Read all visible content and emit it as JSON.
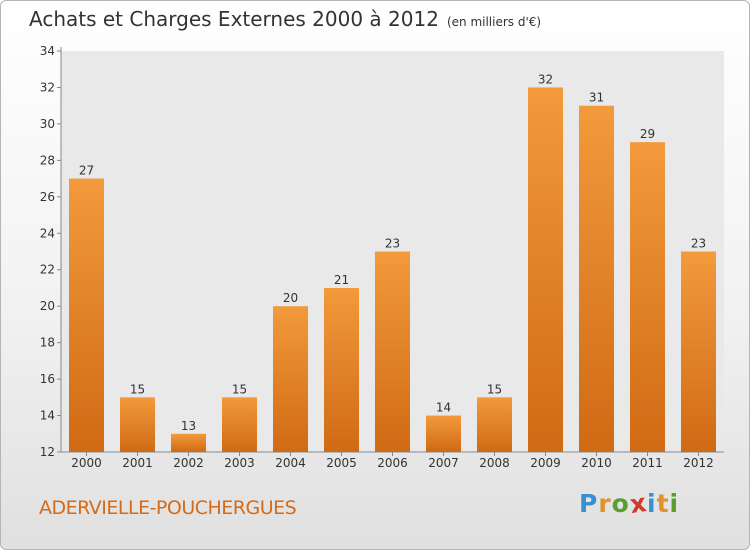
{
  "title": "Achats et Charges Externes 2000 à 2012",
  "subtitle": "(en milliers d'€)",
  "commune": "ADERVIELLE-POUCHERGUES",
  "logo": {
    "text": "Proxiti",
    "letters": [
      "P",
      "r",
      "o",
      "x",
      "i",
      "t",
      "i"
    ],
    "colors": [
      "#3a8fd0",
      "#e0932a",
      "#5a9e2f",
      "#d23a2a",
      "#3a8fd0",
      "#e0932a",
      "#5a9e2f"
    ]
  },
  "chart_data": {
    "type": "bar",
    "title": "Achats et Charges Externes 2000 à 2012",
    "subtitle": "(en milliers d'€)",
    "categories": [
      "2000",
      "2001",
      "2002",
      "2003",
      "2004",
      "2005",
      "2006",
      "2007",
      "2008",
      "2009",
      "2010",
      "2011",
      "2012"
    ],
    "values": [
      27,
      15,
      13,
      15,
      20,
      21,
      23,
      14,
      15,
      32,
      31,
      29,
      23
    ],
    "ylim": [
      12,
      34
    ],
    "yticks": [
      12,
      14,
      16,
      18,
      20,
      22,
      24,
      26,
      28,
      30,
      32,
      34
    ],
    "grid": false,
    "bar_color": "#f29a3c",
    "bar_color_dark": "#d06a14"
  }
}
